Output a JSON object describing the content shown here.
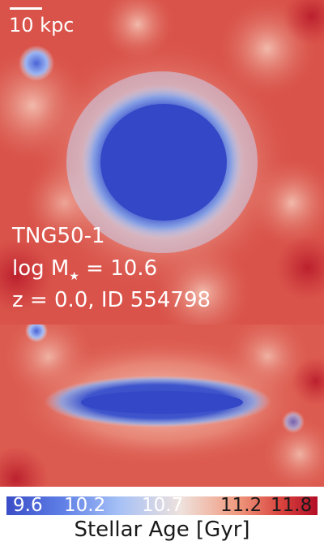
{
  "scalebar": {
    "label": "10 kpc"
  },
  "annotations": {
    "simulation": "TNG50-1",
    "mass_prefix": "log M",
    "mass_subscript": "★",
    "mass_value": " = 10.6",
    "redshift_id": "z = 0.0, ID 554798"
  },
  "colorbar": {
    "label": "Stellar Age [Gyr]",
    "ticks": [
      "9.6",
      "10.2",
      "10.7",
      "11.2",
      "11.8"
    ],
    "colors": {
      "young": "#3a4dc7",
      "old": "#b30d26"
    }
  }
}
